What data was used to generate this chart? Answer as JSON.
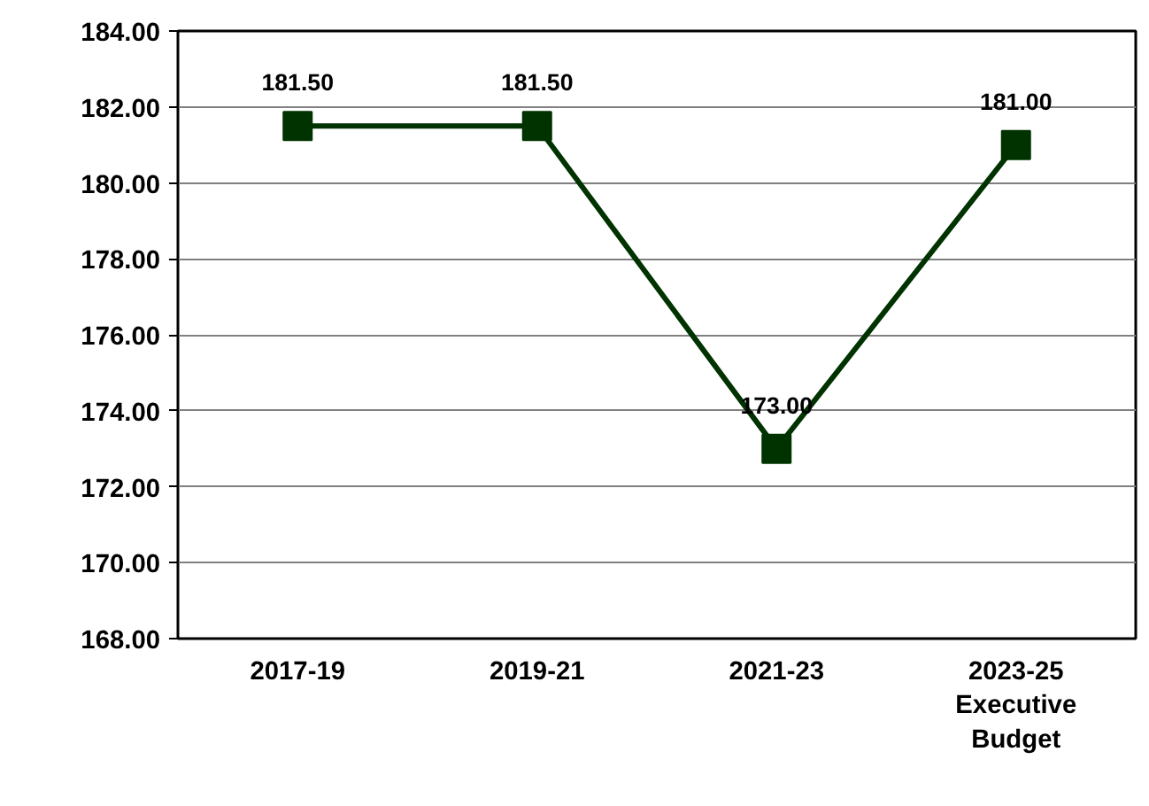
{
  "chart_data": {
    "type": "line",
    "categories": [
      "2017-19",
      "2019-21",
      "2021-23",
      "2023-25\nExecutive\nBudget"
    ],
    "series": [
      {
        "color": "#003300",
        "values": [
          181.5,
          181.5,
          173.0,
          181.0
        ],
        "value_labels": [
          "181.50",
          "181.50",
          "173.00",
          "181.00"
        ]
      }
    ],
    "ylim": [
      168,
      184
    ],
    "yticks": [
      {
        "value": 168,
        "label": "168.00"
      },
      {
        "value": 170,
        "label": "170.00"
      },
      {
        "value": 172,
        "label": "172.00"
      },
      {
        "value": 174,
        "label": "174.00"
      },
      {
        "value": 176,
        "label": "176.00"
      },
      {
        "value": 178,
        "label": "178.00"
      },
      {
        "value": 180,
        "label": "180.00"
      },
      {
        "value": 182,
        "label": "182.00"
      },
      {
        "value": 184,
        "label": "184.00"
      }
    ],
    "grid": "y",
    "marker": "square",
    "line_style": "solid"
  }
}
